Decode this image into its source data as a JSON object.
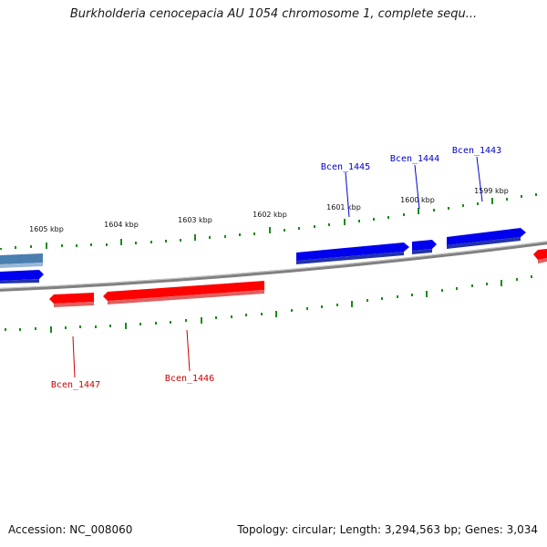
{
  "title": "Burkholderia cenocepacia AU 1054 chromosome 1, complete sequ...",
  "accession_text": "Accession: NC_008060",
  "summary_text": "Topology: circular; Length: 3,294,563 bp; Genes: 3,034",
  "colors": {
    "forward_gene": "#0000ee",
    "forward_gene_side": "#2233aa",
    "reverse_gene": "#ff0000",
    "reverse_gene_side": "#cc3333",
    "selected_gene": "#4a7fb0",
    "backbone": "#808080",
    "tick": "#1a8c1a",
    "forward_label": "#0000cc",
    "reverse_label": "#cc0000"
  },
  "ticks": [
    "1605 kbp",
    "1604 kbp",
    "1603 kbp",
    "1602 kbp",
    "1601 kbp",
    "1600 kbp",
    "1599 kbp"
  ],
  "genes": {
    "forward": [
      "Bcen_1445",
      "Bcen_1444",
      "Bcen_1443"
    ],
    "reverse": [
      "Bcen_1447",
      "Bcen_1446"
    ]
  }
}
